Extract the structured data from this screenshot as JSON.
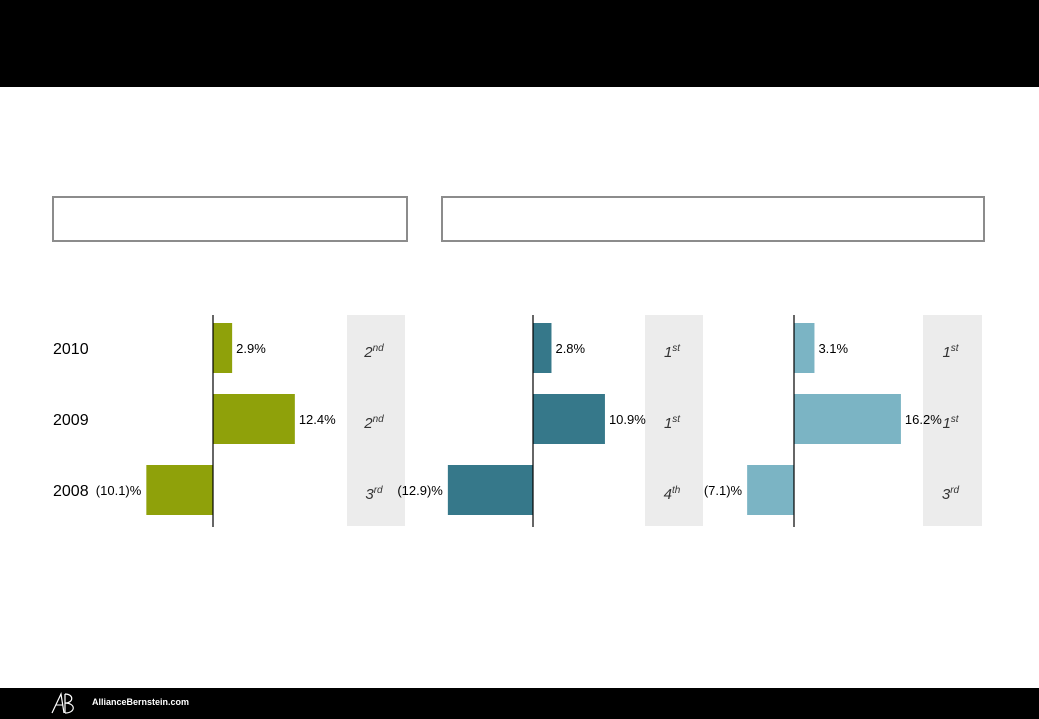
{
  "footer": {
    "site": "AllianceBernstein.com"
  },
  "colors": {
    "green": "#8fa10a",
    "teal": "#36788a",
    "lightblue": "#7bb4c4",
    "rank_bg": "#ececec"
  },
  "chart_data": {
    "type": "bar",
    "orientation": "horizontal",
    "categories": [
      "2010",
      "2009",
      "2008"
    ],
    "panels": [
      {
        "values": [
          2.9,
          12.4,
          -10.1
        ],
        "labels": [
          "2.9%",
          "12.4%",
          "(10.1)%"
        ],
        "ranks": [
          [
            "2",
            "nd"
          ],
          [
            "2",
            "nd"
          ],
          [
            "3",
            "rd"
          ]
        ],
        "color": "#8fa10a"
      },
      {
        "values": [
          2.8,
          10.9,
          -12.9
        ],
        "labels": [
          "2.8%",
          "10.9%",
          "(12.9)%"
        ],
        "ranks": [
          [
            "1",
            "st"
          ],
          [
            "1",
            "st"
          ],
          [
            "4",
            "th"
          ]
        ],
        "color": "#36788a"
      },
      {
        "values": [
          3.1,
          16.2,
          -7.1
        ],
        "labels": [
          "3.1%",
          "16.2%",
          "(7.1)%"
        ],
        "ranks": [
          [
            "1",
            "st"
          ],
          [
            "1",
            "st"
          ],
          [
            "3",
            "rd"
          ]
        ],
        "color": "#7bb4c4"
      }
    ]
  }
}
